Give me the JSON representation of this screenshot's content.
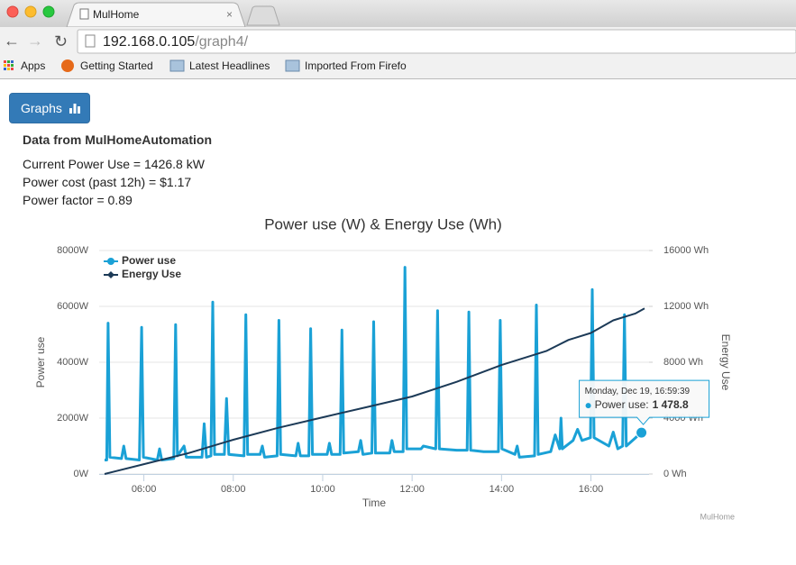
{
  "browser": {
    "tab_title": "MulHome",
    "url_host": "192.168.0.105",
    "url_path": "/graph4/",
    "bookmarks": [
      "Apps",
      "Getting Started",
      "Latest Headlines",
      "Imported From Firefo"
    ]
  },
  "page": {
    "button": "Graphs",
    "heading": "Data from MulHomeAutomation",
    "lines": [
      "Current Power Use = 1426.8 kW",
      "Power cost (past 12h) = $1.17",
      "Power factor = 0.89"
    ]
  },
  "chart_data": {
    "type": "line",
    "title": "Power use (W) & Energy Use (Wh)",
    "x_label": "Time",
    "y_label": "Power use",
    "y2_label": "Energy Use",
    "credits": "MulHome",
    "xlim": [
      5,
      17.3
    ],
    "xticks": [
      {
        "value": 6,
        "label": "06:00"
      },
      {
        "value": 8,
        "label": "08:00"
      },
      {
        "value": 10,
        "label": "10:00"
      },
      {
        "value": 12,
        "label": "12:00"
      },
      {
        "value": 14,
        "label": "14:00"
      },
      {
        "value": 16,
        "label": "16:00"
      }
    ],
    "ylim": [
      0,
      8000
    ],
    "yticks": [
      {
        "value": 0,
        "label": "0W"
      },
      {
        "value": 2000,
        "label": "2000W"
      },
      {
        "value": 4000,
        "label": "4000W"
      },
      {
        "value": 6000,
        "label": "6000W"
      },
      {
        "value": 8000,
        "label": "8000W"
      }
    ],
    "y2lim": [
      0,
      16000
    ],
    "y2ticks": [
      {
        "value": 0,
        "label": "0 Wh"
      },
      {
        "value": 4000,
        "label": "4000 Wh"
      },
      {
        "value": 8000,
        "label": "8000 Wh"
      },
      {
        "value": 12000,
        "label": "12000 Wh"
      },
      {
        "value": 16000,
        "label": "16000 Wh"
      }
    ],
    "grid": true,
    "legend": "top-left",
    "series": [
      {
        "name": "Power use",
        "color": "#1aa1d6",
        "x": [
          5.12,
          5.17,
          5.2,
          5.24,
          5.5,
          5.55,
          5.6,
          5.9,
          5.95,
          5.99,
          6.3,
          6.35,
          6.4,
          6.67,
          6.71,
          6.75,
          6.9,
          6.95,
          7.3,
          7.35,
          7.4,
          7.5,
          7.54,
          7.58,
          7.8,
          7.85,
          7.9,
          8.24,
          8.28,
          8.32,
          8.6,
          8.65,
          8.7,
          8.98,
          9.02,
          9.06,
          9.4,
          9.45,
          9.5,
          9.69,
          9.73,
          9.77,
          10.1,
          10.15,
          10.2,
          10.39,
          10.43,
          10.47,
          10.8,
          10.85,
          10.9,
          11.1,
          11.14,
          11.18,
          11.5,
          11.55,
          11.6,
          11.8,
          11.84,
          11.88,
          12.2,
          12.25,
          12.53,
          12.57,
          12.61,
          13.0,
          13.23,
          13.27,
          13.31,
          13.6,
          13.93,
          13.97,
          14.01,
          14.3,
          14.35,
          14.4,
          14.74,
          14.78,
          14.82,
          15.1,
          15.2,
          15.3,
          15.33,
          15.36,
          15.6,
          15.7,
          15.8,
          15.99,
          16.03,
          16.07,
          16.4,
          16.5,
          16.6,
          16.71,
          16.75,
          16.79,
          17.0,
          17.13
        ],
        "values": [
          500,
          500,
          5400,
          600,
          550,
          1000,
          550,
          500,
          5250,
          600,
          500,
          900,
          500,
          550,
          5350,
          650,
          1000,
          600,
          600,
          1800,
          600,
          650,
          6150,
          700,
          700,
          2700,
          700,
          650,
          5700,
          700,
          700,
          1000,
          600,
          650,
          5500,
          700,
          650,
          1100,
          650,
          650,
          5200,
          700,
          700,
          1100,
          700,
          700,
          5150,
          750,
          800,
          1200,
          700,
          750,
          5450,
          750,
          750,
          1200,
          800,
          800,
          7400,
          900,
          900,
          1000,
          900,
          5850,
          900,
          850,
          850,
          5800,
          850,
          800,
          800,
          5500,
          900,
          700,
          1000,
          600,
          650,
          6050,
          700,
          800,
          1400,
          900,
          2000,
          900,
          1200,
          1600,
          1200,
          1300,
          6600,
          1300,
          1000,
          1500,
          900,
          1000,
          5700,
          1000,
          1300,
          1478.8
        ]
      },
      {
        "name": "Energy Use",
        "color": "#1c3a57",
        "axis": "y2",
        "x": [
          5.12,
          6,
          7,
          8,
          9,
          10,
          11,
          12,
          13,
          14,
          15,
          15.5,
          16,
          16.5,
          17,
          17.2
        ],
        "values": [
          0,
          700,
          1500,
          2450,
          3300,
          4060,
          4800,
          5550,
          6600,
          7800,
          8800,
          9600,
          10100,
          11000,
          11500,
          11850
        ]
      }
    ],
    "tooltip": {
      "header": "Monday, Dec 19, 16:59:39",
      "label": "Power use:",
      "value": 1478.8,
      "value_label": "1 478.8"
    }
  }
}
